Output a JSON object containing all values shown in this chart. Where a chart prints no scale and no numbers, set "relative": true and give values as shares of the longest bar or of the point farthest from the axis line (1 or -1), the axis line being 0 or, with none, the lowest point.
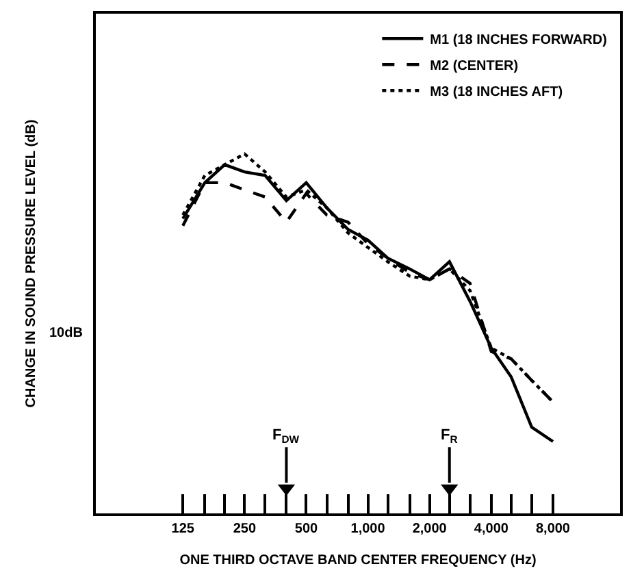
{
  "chart_data": {
    "type": "line",
    "relative": true,
    "ylabel": "CHANGE IN SOUND PRESSURE LEVEL (dB)",
    "xlabel": "ONE THIRD OCTAVE BAND CENTER FREQUENCY (Hz)",
    "x": [
      125,
      160,
      200,
      250,
      315,
      400,
      500,
      630,
      800,
      1000,
      1250,
      1600,
      2000,
      2500,
      3150,
      4000,
      5000,
      6300,
      8000
    ],
    "log": "x",
    "xlim": [
      47,
      17000
    ],
    "xticks": [
      125,
      {
        "value": 160,
        "label": null
      },
      {
        "value": 200,
        "label": null
      },
      250,
      {
        "value": 315,
        "label": null
      },
      {
        "value": 400,
        "label": null
      },
      500,
      {
        "value": 630,
        "label": null
      },
      {
        "value": 800,
        "label": null
      },
      {
        "value": 1000,
        "label": "1,000"
      },
      {
        "value": 1250,
        "label": null
      },
      {
        "value": 1600,
        "label": null
      },
      {
        "value": 2000,
        "label": "2,000"
      },
      {
        "value": 2500,
        "label": null
      },
      {
        "value": 3150,
        "label": null
      },
      {
        "value": 4000,
        "label": "4,000"
      },
      {
        "value": 5000,
        "label": null
      },
      {
        "value": 6300,
        "label": null
      },
      {
        "value": 8000,
        "label": "8,000"
      }
    ],
    "series": [
      {
        "name": "M1 (18 INCHES FORWARD)",
        "color": "#000000",
        "line_style": "solid",
        "values": [
          0.82,
          0.92,
          0.97,
          0.95,
          0.94,
          0.87,
          0.92,
          0.85,
          0.79,
          0.76,
          0.71,
          0.68,
          0.65,
          0.7,
          0.59,
          0.46,
          0.38,
          0.24,
          0.2
        ]
      },
      {
        "name": "M2 (CENTER)",
        "color": "#000000",
        "line_style": "dashed",
        "values": [
          0.8,
          0.92,
          0.92,
          0.9,
          0.88,
          0.81,
          0.89,
          0.83,
          0.81,
          0.75,
          0.71,
          0.67,
          0.65,
          0.68,
          0.64,
          0.45,
          0.43,
          0.37,
          0.31
        ]
      },
      {
        "name": "M3 (18 INCHES AFT)",
        "color": "#000000",
        "line_style": "dotted",
        "values": [
          0.83,
          0.94,
          0.97,
          1.0,
          0.95,
          0.88,
          0.9,
          0.85,
          0.78,
          0.74,
          0.7,
          0.66,
          0.65,
          0.68,
          0.62,
          0.46,
          0.43,
          0.37,
          0.31
        ]
      },
      {
        "type": "scatter",
        "marker": "triangle",
        "color": "#000000",
        "x": [
          400,
          2500
        ],
        "values": [
          0.07,
          0.07
        ]
      }
    ],
    "annotations": [
      "10dB",
      {
        "text": "F$_{DW}$",
        "x": 400,
        "y": 0.07
      },
      {
        "text": "F$_{R}$",
        "x": 2500,
        "y": 0.07
      }
    ],
    "legend": "top right",
    "marker": "none"
  }
}
